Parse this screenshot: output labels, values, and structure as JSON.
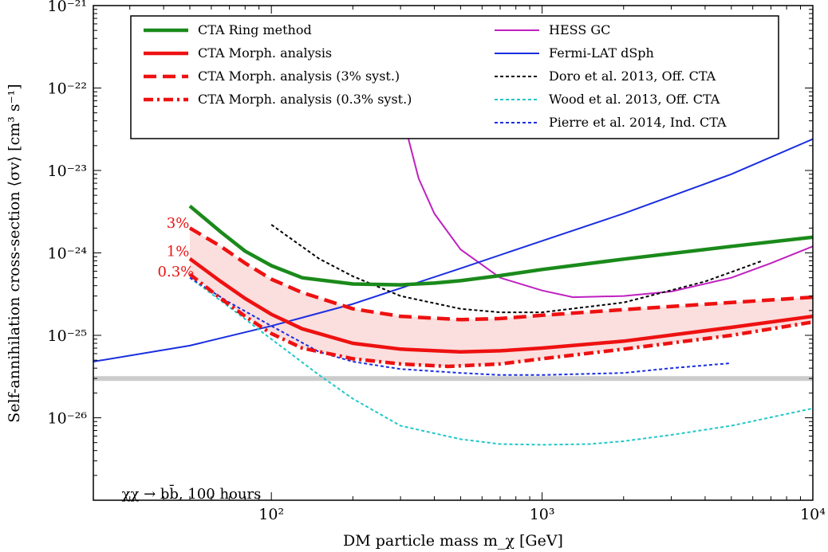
{
  "chart_data": {
    "type": "line",
    "xscale": "log",
    "yscale": "log",
    "xlim": [
      22,
      10000
    ],
    "ylim": [
      1e-27,
      1e-21
    ],
    "xlabel": "DM particle mass m_χ [GeV]",
    "ylabel": "Self-annihilation cross-section ⟨σv⟩ [cm³ s⁻¹]",
    "x_tick_labels": [
      {
        "value": 100,
        "text": "10²"
      },
      {
        "value": 1000,
        "text": "10³"
      },
      {
        "value": 10000,
        "text": "10⁴"
      }
    ],
    "y_tick_labels": [
      {
        "value": 1e-21,
        "text": "10⁻²¹"
      },
      {
        "value": 1e-22,
        "text": "10⁻²²"
      },
      {
        "value": 1e-23,
        "text": "10⁻²³"
      },
      {
        "value": 1e-24,
        "text": "10⁻²⁴"
      },
      {
        "value": 1e-25,
        "text": "10⁻²⁵"
      },
      {
        "value": 1e-26,
        "text": "10⁻²⁶"
      }
    ],
    "thermal_band": {
      "ymin": 2.8e-26,
      "ymax": 3.2e-26,
      "color": "#cccccc"
    },
    "band": {
      "color": "#fbdede",
      "upper_series": "CTA Morph. analysis (3% syst.)",
      "lower_series": "CTA Morph. analysis (0.3% syst.)"
    },
    "legend_placement": "top",
    "series": [
      {
        "name": "CTA Ring method",
        "legend_column": 0,
        "color": "#1a8a1a",
        "width": 4.5,
        "dash": "",
        "x": [
          50,
          65,
          80,
          100,
          130,
          200,
          300,
          400,
          500,
          700,
          1000,
          2000,
          5000,
          10000
        ],
        "y": [
          3.7e-24,
          1.8e-24,
          1.05e-24,
          7e-25,
          5e-25,
          4.2e-25,
          4.1e-25,
          4.3e-25,
          4.6e-25,
          5.3e-25,
          6.3e-25,
          8.4e-25,
          1.2e-24,
          1.55e-24
        ]
      },
      {
        "name": "CTA Morph. analysis",
        "legend_column": 0,
        "color": "#ee1111",
        "width": 4.5,
        "dash": "",
        "x": [
          50,
          65,
          80,
          100,
          130,
          200,
          300,
          500,
          700,
          1000,
          2000,
          5000,
          10000
        ],
        "y": [
          8.5e-25,
          4.5e-25,
          2.8e-25,
          1.8e-25,
          1.2e-25,
          8e-26,
          6.8e-26,
          6.3e-26,
          6.5e-26,
          7e-26,
          8.5e-26,
          1.25e-25,
          1.7e-25
        ]
      },
      {
        "name": "CTA Morph. analysis (3% syst.)",
        "legend_column": 0,
        "color": "#ee1111",
        "width": 4.5,
        "dash": "16 8",
        "x": [
          50,
          65,
          80,
          100,
          130,
          200,
          300,
          500,
          700,
          1000,
          2000,
          5000,
          10000
        ],
        "y": [
          2e-24,
          1.2e-24,
          7.5e-25,
          4.8e-25,
          3.3e-25,
          2.1e-25,
          1.7e-25,
          1.55e-25,
          1.6e-25,
          1.75e-25,
          2.05e-25,
          2.5e-25,
          2.9e-25
        ]
      },
      {
        "name": "CTA Morph. analysis (0.3% syst.)",
        "legend_column": 0,
        "color": "#ee1111",
        "width": 4.5,
        "dash": "12 5 3 5",
        "x": [
          50,
          65,
          80,
          100,
          130,
          200,
          300,
          450,
          700,
          1000,
          2000,
          5000,
          10000
        ],
        "y": [
          5.5e-25,
          2.8e-25,
          1.7e-25,
          1.05e-25,
          7e-26,
          5.2e-26,
          4.5e-26,
          4.2e-26,
          4.5e-26,
          5.2e-26,
          6.8e-26,
          1e-25,
          1.45e-25
        ]
      },
      {
        "name": "HESS GC",
        "legend_column": 1,
        "color": "#c020c0",
        "width": 2,
        "dash": "",
        "x": [
          300,
          320,
          350,
          400,
          500,
          700,
          1000,
          1300,
          2000,
          3000,
          5000,
          7000,
          10000
        ],
        "y": [
          8e-23,
          2.5e-23,
          8e-24,
          3e-24,
          1.1e-24,
          5e-25,
          3.5e-25,
          2.9e-25,
          3e-25,
          3.4e-25,
          5e-25,
          7.5e-25,
          1.2e-24
        ]
      },
      {
        "name": "Fermi-LAT dSph",
        "legend_column": 1,
        "color": "#1a2ee0",
        "width": 2,
        "dash": "",
        "x": [
          22,
          50,
          100,
          200,
          500,
          1000,
          2000,
          5000,
          10000
        ],
        "y": [
          4.8e-26,
          7.5e-26,
          1.3e-25,
          2.4e-25,
          6.5e-25,
          1.4e-24,
          3e-24,
          9e-24,
          2.4e-23
        ]
      },
      {
        "name": "Doro et al. 2013, Off. CTA",
        "legend_column": 1,
        "color": "#000000",
        "width": 2,
        "dash": "4 3",
        "x": [
          100,
          150,
          200,
          300,
          500,
          700,
          1000,
          2000,
          4000,
          6500
        ],
        "y": [
          2.2e-24,
          8.5e-25,
          5.2e-25,
          3e-25,
          2.1e-25,
          1.9e-25,
          1.9e-25,
          2.5e-25,
          4.5e-25,
          8e-25
        ]
      },
      {
        "name": "Wood et al. 2013, Off. CTA",
        "legend_column": 1,
        "color": "#20c8c8",
        "width": 2,
        "dash": "4 3",
        "x": [
          50,
          70,
          100,
          150,
          200,
          300,
          500,
          700,
          1000,
          1500,
          2000,
          3000,
          5000,
          10000
        ],
        "y": [
          5e-25,
          2.2e-25,
          9e-26,
          3.3e-26,
          1.7e-26,
          8e-27,
          5.5e-27,
          4.8e-27,
          4.7e-27,
          4.8e-27,
          5.2e-27,
          6.2e-27,
          8e-27,
          1.3e-26
        ]
      },
      {
        "name": "Pierre et al. 2014, Ind. CTA",
        "legend_column": 1,
        "color": "#1a2ee0",
        "width": 2,
        "dash": "4 3",
        "x": [
          50,
          70,
          100,
          150,
          200,
          300,
          500,
          700,
          1000,
          2000,
          3000,
          5000
        ],
        "y": [
          5e-25,
          2.5e-25,
          1.3e-25,
          6.3e-26,
          4.8e-26,
          3.9e-26,
          3.5e-26,
          3.3e-26,
          3.3e-26,
          3.5e-26,
          4e-26,
          4.6e-26
        ]
      }
    ],
    "annotations": [
      {
        "text": "χχ → bb̄, 100 hours",
        "x": 28,
        "y": 1.2e-27,
        "color": "#000000"
      },
      {
        "text": "3%",
        "x": 41,
        "y": 2.3e-24,
        "color": "#ee1111"
      },
      {
        "text": "1%",
        "x": 41,
        "y": 1.05e-24,
        "color": "#ee1111"
      },
      {
        "text": "0.3%",
        "x": 38,
        "y": 5.9e-25,
        "color": "#ee1111"
      }
    ]
  }
}
